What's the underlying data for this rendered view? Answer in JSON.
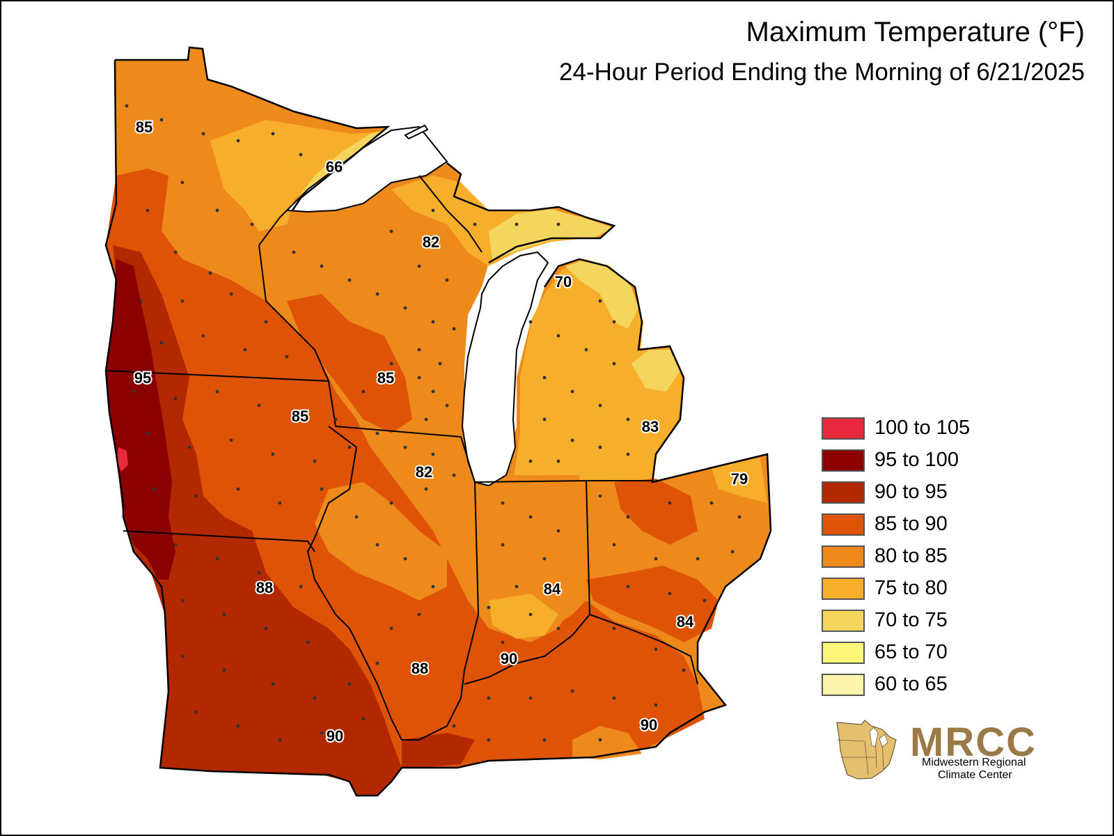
{
  "title": "Maximum Temperature (°F)",
  "subtitle": "24-Hour Period Ending the Morning of 6/21/2025",
  "legend": [
    {
      "label": "100 to 105",
      "color": "#e8283c"
    },
    {
      "label": "95 to 100",
      "color": "#8b0000"
    },
    {
      "label": "90 to 95",
      "color": "#b22800"
    },
    {
      "label": "85 to 90",
      "color": "#de5305"
    },
    {
      "label": "80 to 85",
      "color": "#ee8a1c"
    },
    {
      "label": "75 to 80",
      "color": "#f7ae2b"
    },
    {
      "label": "70 to 75",
      "color": "#f4d65e"
    },
    {
      "label": "65 to 70",
      "color": "#fbf57a"
    },
    {
      "label": "60 to 65",
      "color": "#fcf6ad"
    }
  ],
  "map_labels": [
    "85",
    "66",
    "82",
    "70",
    "95",
    "85",
    "85",
    "83",
    "82",
    "79",
    "88",
    "84",
    "84",
    "90",
    "88",
    "90",
    "90"
  ],
  "logo": {
    "name": "MRCC",
    "line1": "Midwestern Regional",
    "line2": "Climate Center"
  }
}
